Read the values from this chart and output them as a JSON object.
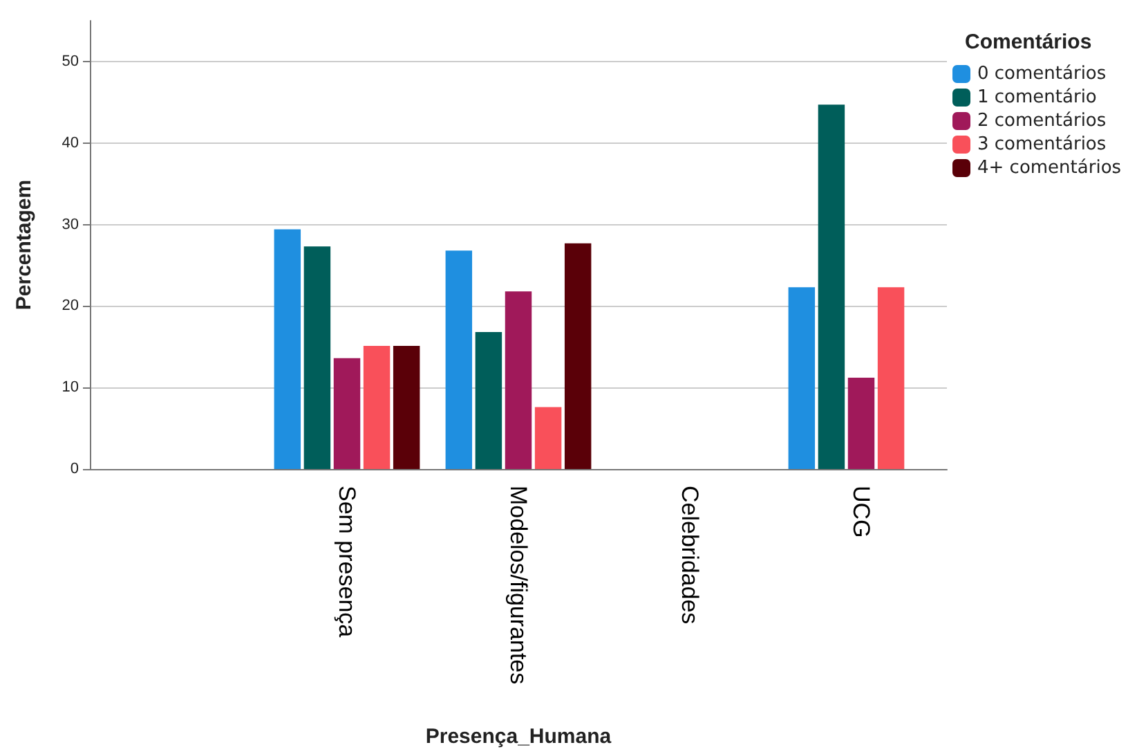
{
  "chart_data": {
    "type": "bar",
    "xlabel": "Presença_Humana",
    "ylabel": "Percentagem",
    "legend_title": "Comentários",
    "categories": [
      null,
      "Sem presença",
      "Modelos/figurantes",
      "Celebridades",
      "UCG"
    ],
    "series": [
      {
        "name": "0 comentários",
        "color": "#1f8fe0",
        "values": [
          null,
          29.4,
          26.8,
          null,
          22.3
        ]
      },
      {
        "name": "1 comentário",
        "color": "#005e5a",
        "values": [
          null,
          27.3,
          16.8,
          null,
          44.7
        ]
      },
      {
        "name": "2 comentários",
        "color": "#a0195a",
        "values": [
          null,
          13.6,
          21.8,
          null,
          11.2
        ]
      },
      {
        "name": "3 comentários",
        "color": "#f9505a",
        "values": [
          null,
          15.1,
          7.6,
          null,
          22.3
        ]
      },
      {
        "name": "4+ comentários",
        "color": "#5a0008",
        "values": [
          null,
          15.1,
          27.7,
          null,
          null
        ]
      }
    ],
    "ylim": [
      0,
      55
    ],
    "yticks": [
      0,
      10,
      20,
      30,
      40,
      50
    ],
    "grid": "y",
    "legend": "top right"
  }
}
